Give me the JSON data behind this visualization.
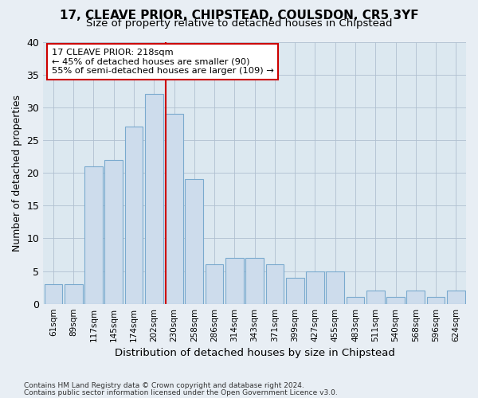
{
  "title": "17, CLEAVE PRIOR, CHIPSTEAD, COULSDON, CR5 3YF",
  "subtitle": "Size of property relative to detached houses in Chipstead",
  "xlabel": "Distribution of detached houses by size in Chipstead",
  "ylabel": "Number of detached properties",
  "bar_color": "#cddcec",
  "bar_edge_color": "#7aaace",
  "categories": [
    "61sqm",
    "89sqm",
    "117sqm",
    "145sqm",
    "174sqm",
    "202sqm",
    "230sqm",
    "258sqm",
    "286sqm",
    "314sqm",
    "343sqm",
    "371sqm",
    "399sqm",
    "427sqm",
    "455sqm",
    "483sqm",
    "511sqm",
    "540sqm",
    "568sqm",
    "596sqm",
    "624sqm"
  ],
  "values": [
    3,
    3,
    21,
    22,
    27,
    32,
    29,
    19,
    6,
    7,
    7,
    6,
    4,
    5,
    5,
    1,
    2,
    1,
    2,
    1,
    2
  ],
  "ylim": [
    0,
    40
  ],
  "yticks": [
    0,
    5,
    10,
    15,
    20,
    25,
    30,
    35,
    40
  ],
  "vline_x": 5.57,
  "annotation_text": "17 CLEAVE PRIOR: 218sqm\n← 45% of detached houses are smaller (90)\n55% of semi-detached houses are larger (109) →",
  "vline_color": "#cc0000",
  "annotation_box_color": "#ffffff",
  "annotation_box_edge": "#cc0000",
  "footer1": "Contains HM Land Registry data © Crown copyright and database right 2024.",
  "footer2": "Contains public sector information licensed under the Open Government Licence v3.0.",
  "bg_color": "#e8eef4",
  "plot_bg_color": "#dce8f0",
  "grid_color": "#b0c0d0"
}
